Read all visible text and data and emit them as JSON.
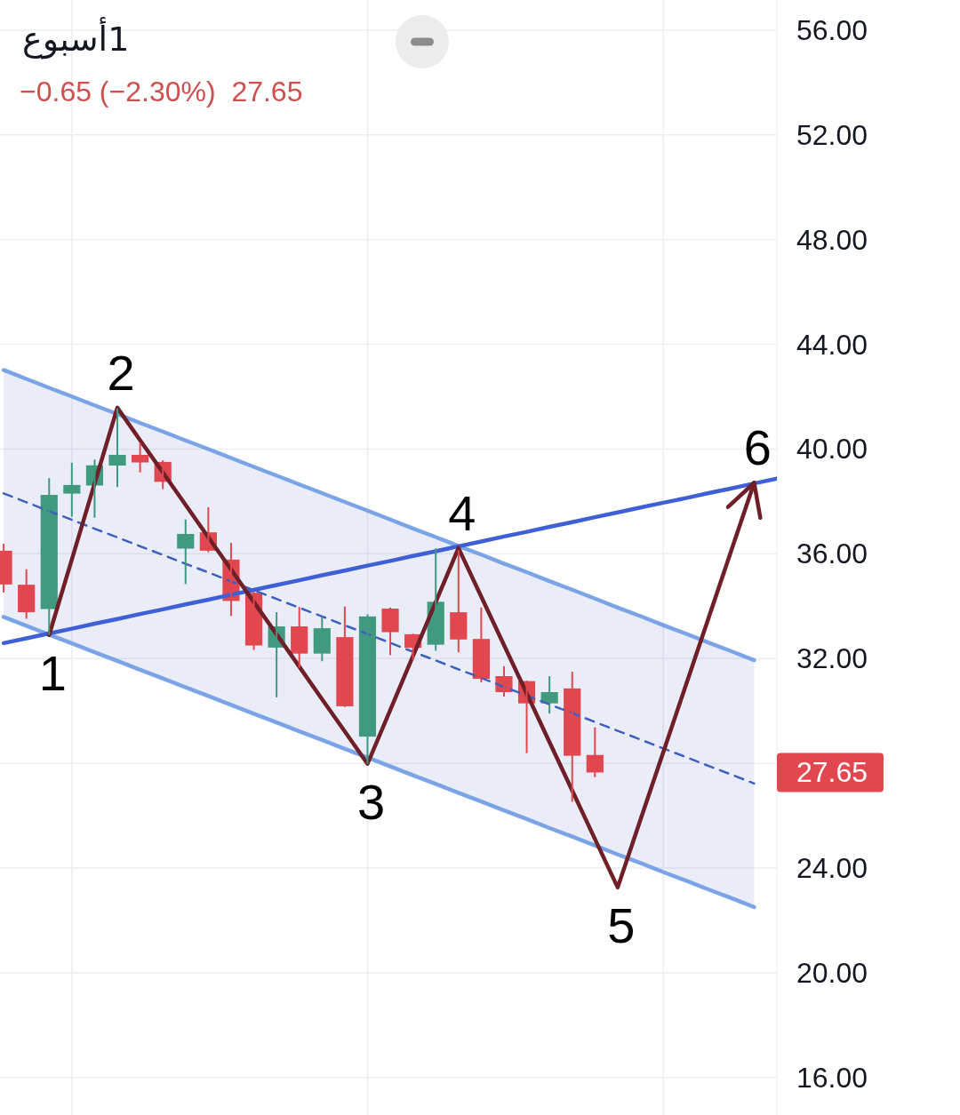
{
  "chart_data": {
    "type": "candlestick",
    "title": "1أسبوع",
    "subtitle": "−0.65 (−2.30%)  27.65",
    "categories": [
      null,
      null,
      null,
      null,
      null,
      null,
      null,
      null,
      null,
      null,
      null,
      null,
      null,
      null,
      null,
      null,
      null,
      null,
      null,
      null,
      null,
      null,
      null,
      null,
      null,
      null,
      null,
      null,
      null,
      null,
      null,
      null,
      null,
      null,
      null
    ],
    "ohlc": [
      [
        36.12,
        36.39,
        34.52,
        34.83
      ],
      [
        34.82,
        35.41,
        33.52,
        33.77
      ],
      [
        33.89,
        38.89,
        32.9,
        38.25
      ],
      [
        38.3,
        39.48,
        37.42,
        38.63
      ],
      [
        38.61,
        39.6,
        37.38,
        39.38
      ],
      [
        39.37,
        41.55,
        38.55,
        39.78
      ],
      [
        39.78,
        40.25,
        39.11,
        39.49
      ],
      [
        39.51,
        39.57,
        38.47,
        38.75
      ],
      [
        36.2,
        37.31,
        34.85,
        36.76
      ],
      [
        36.82,
        37.78,
        36.06,
        36.12
      ],
      [
        35.78,
        36.42,
        33.63,
        34.2
      ],
      [
        34.51,
        34.55,
        32.33,
        32.5
      ],
      [
        32.42,
        33.77,
        30.52,
        33.23
      ],
      [
        33.23,
        33.97,
        31.65,
        32.19
      ],
      [
        32.19,
        33.6,
        31.9,
        33.16
      ],
      [
        32.82,
        33.99,
        30.15,
        30.18
      ],
      [
        29.02,
        33.69,
        27.98,
        33.61
      ],
      [
        33.91,
        33.95,
        32.13,
        33.01
      ],
      [
        32.93,
        32.95,
        31.94,
        32.41
      ],
      [
        32.53,
        36.21,
        32.3,
        34.17
      ],
      [
        33.77,
        36.14,
        32.24,
        32.73
      ],
      [
        32.75,
        33.95,
        31.09,
        31.23
      ],
      [
        31.33,
        31.71,
        30.55,
        30.72
      ],
      [
        31.14,
        31.16,
        28.39,
        30.29
      ],
      [
        30.29,
        31.33,
        29.9,
        30.72
      ],
      [
        30.86,
        31.5,
        26.53,
        28.29
      ],
      [
        28.32,
        29.37,
        27.47,
        27.65
      ],
      null,
      null,
      null,
      null,
      null,
      null,
      null,
      null
    ],
    "colors": [
      "#e0474f",
      "#e0474f",
      "#3f9a7f",
      "#3f9a7f",
      "#3f9a7f",
      "#3f9a7f",
      "#e0474f",
      "#e0474f",
      "#3f9a7f",
      "#e0474f",
      "#e0474f",
      "#e0474f",
      "#3f9a7f",
      "#e0474f",
      "#3f9a7f",
      "#e0474f",
      "#3f9a7f",
      "#e0474f",
      "#e0474f",
      "#3f9a7f",
      "#e0474f",
      "#e0474f",
      "#e0474f",
      "#e0474f",
      "#3f9a7f",
      "#e0474f",
      "#e0474f",
      null,
      null,
      null,
      null,
      null,
      null,
      null,
      null
    ],
    "ylim": [
      14.57,
      57.15
    ],
    "yticks": [
      {
        "value": 16,
        "label": "16.00"
      },
      {
        "value": 20,
        "label": "20.00"
      },
      {
        "value": 24,
        "label": "24.00"
      },
      {
        "value": 28,
        "label": null
      },
      {
        "value": 32,
        "label": "32.00"
      },
      {
        "value": 36,
        "label": "36.00"
      },
      {
        "value": 40,
        "label": "40.00"
      },
      {
        "value": 44,
        "label": "44.00"
      },
      {
        "value": 48,
        "label": "48.00"
      },
      {
        "value": 52,
        "label": "52.00"
      },
      {
        "value": 56,
        "label": "56.00"
      }
    ],
    "tick_labels": "y",
    "grid": true,
    "series": [
      {
        "type": "line",
        "color": "#7aa4e6",
        "line_style": "solid",
        "values": [
          43.02,
          42.68,
          42.34,
          42.01,
          41.67,
          41.34,
          41.0,
          40.67,
          40.33,
          40.0,
          39.66,
          39.32,
          38.99,
          38.65,
          38.32,
          37.98,
          37.65,
          37.31,
          36.97,
          36.64,
          36.3,
          35.97,
          35.63,
          35.3,
          34.96,
          34.63,
          34.29,
          33.95,
          33.62,
          33.28,
          32.95,
          32.61,
          32.28,
          31.94,
          null
        ]
      },
      {
        "type": "line",
        "color": "#7aa4e6",
        "line_style": "solid",
        "values": [
          33.59,
          33.25,
          32.91,
          32.58,
          32.24,
          31.91,
          31.57,
          31.24,
          30.9,
          30.57,
          30.23,
          29.89,
          29.56,
          29.22,
          28.89,
          28.55,
          28.22,
          27.88,
          27.54,
          27.21,
          26.87,
          26.54,
          26.2,
          25.87,
          25.53,
          25.2,
          24.86,
          24.52,
          24.19,
          23.85,
          23.52,
          23.18,
          22.85,
          22.51,
          null
        ]
      },
      {
        "type": "line",
        "color": "#3d5fbf",
        "line_style": "dashed",
        "values": [
          38.31,
          37.97,
          37.63,
          37.3,
          36.96,
          36.63,
          36.29,
          35.96,
          35.62,
          35.29,
          34.95,
          34.61,
          34.28,
          33.94,
          33.61,
          33.27,
          32.94,
          32.6,
          32.26,
          31.93,
          31.59,
          31.26,
          30.92,
          30.59,
          30.25,
          29.92,
          29.58,
          29.24,
          28.91,
          28.57,
          28.24,
          27.9,
          27.57,
          27.23,
          null
        ],
        "lower": [
          33.59,
          33.25,
          32.91,
          32.58,
          32.24,
          31.91,
          31.57,
          31.24,
          30.9,
          30.57,
          30.23,
          29.89,
          29.56,
          29.22,
          28.89,
          28.55,
          28.22,
          27.88,
          27.54,
          27.21,
          26.87,
          26.54,
          26.2,
          25.87,
          25.53,
          25.2,
          24.86,
          24.52,
          24.19,
          23.85,
          23.52,
          23.18,
          22.85,
          22.51,
          null
        ],
        "upper": [
          43.02,
          42.68,
          42.34,
          42.01,
          41.67,
          41.34,
          41.0,
          40.67,
          40.33,
          40.0,
          39.66,
          39.32,
          38.99,
          38.65,
          38.32,
          37.98,
          37.65,
          37.31,
          36.97,
          36.64,
          36.3,
          35.97,
          35.63,
          35.3,
          34.96,
          34.63,
          34.29,
          33.95,
          33.62,
          33.28,
          32.95,
          32.61,
          32.28,
          31.94,
          null
        ]
      },
      {
        "type": "line",
        "color": "#3f5fd6",
        "line_style": "solid",
        "values": [
          32.59,
          32.77,
          32.96,
          33.14,
          33.33,
          33.51,
          33.7,
          33.88,
          34.07,
          34.25,
          34.44,
          34.62,
          34.81,
          34.99,
          35.18,
          35.36,
          35.55,
          35.73,
          35.92,
          36.1,
          36.29,
          36.47,
          36.66,
          36.84,
          37.03,
          37.21,
          37.4,
          37.58,
          37.77,
          37.95,
          38.13,
          38.32,
          38.5,
          38.69,
          38.87
        ]
      },
      {
        "type": "line",
        "color": "#6e1f28",
        "line_style": "solid",
        "values": [
          null,
          null,
          32.9,
          35.79,
          38.69,
          41.58,
          40.34,
          39.11,
          37.87,
          36.63,
          35.4,
          34.16,
          32.93,
          31.69,
          30.45,
          29.22,
          27.98,
          30.04,
          32.1,
          34.16,
          36.22,
          34.37,
          32.52,
          30.67,
          28.81,
          26.96,
          25.11,
          23.26,
          25.84,
          28.41,
          30.99,
          33.56,
          36.14,
          38.71,
          null
        ]
      }
    ],
    "annotations": [
      {
        "text": "1",
        "y": 32.9
      },
      {
        "text": "2",
        "y": 41.58
      },
      {
        "text": "3",
        "y": 27.98
      },
      {
        "text": "4",
        "y": 36.22
      },
      {
        "text": "5",
        "y": 23.26
      },
      {
        "text": "6",
        "y": 38.71
      },
      "27.65"
    ]
  }
}
